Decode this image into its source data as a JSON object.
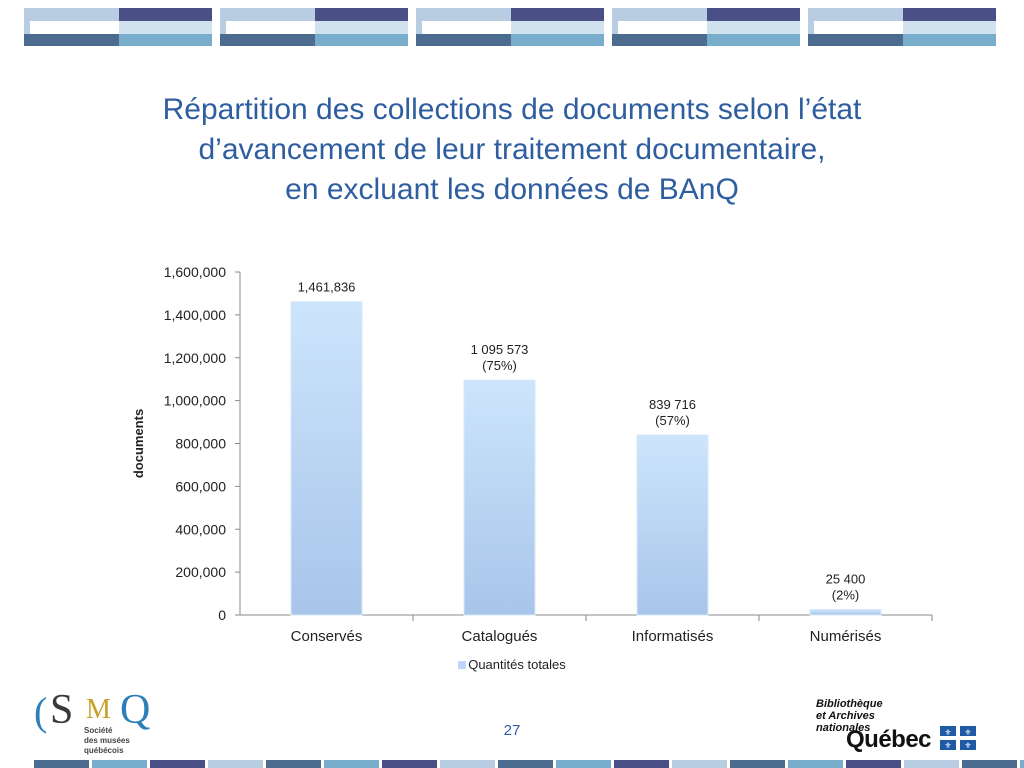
{
  "title_lines": [
    "Répartition des collections de documents selon l’état",
    "d’avancement de leur traitement documentaire,",
    "en excluant les données de BAnQ"
  ],
  "page_number": "27",
  "logos": {
    "smq": {
      "letters": [
        "(",
        "S",
        "M",
        "Q"
      ],
      "sub": [
        "Société",
        "des musées",
        "québécois"
      ]
    },
    "banq": {
      "lines": [
        "Bibliothèque",
        "et Archives",
        "nationales"
      ],
      "quebec": "Québec"
    }
  },
  "colors": {
    "title": "#2f5ea0",
    "bar_top": "#c9e2fb",
    "bar_bottom": "#a9c6ea",
    "axis": "#888888"
  },
  "chart_data": {
    "type": "bar",
    "title": "",
    "xlabel": "",
    "ylabel": "documents",
    "categories": [
      "Conservés",
      "Catalogués",
      "Informatisés",
      "Numérisés"
    ],
    "series": [
      {
        "name": "Quantités totales",
        "values": [
          1461836,
          1095573,
          839716,
          25400
        ]
      }
    ],
    "data_labels": [
      [
        "1,461,836"
      ],
      [
        "1 095 573",
        "(75%)"
      ],
      [
        "839 716",
        "(57%)"
      ],
      [
        "25 400",
        "(2%)"
      ]
    ],
    "ylim": [
      0,
      1600000
    ],
    "yticks": [
      0,
      200000,
      400000,
      600000,
      800000,
      1000000,
      1200000,
      1400000,
      1600000
    ],
    "ytick_labels": [
      "0",
      "200,000",
      "400,000",
      "600,000",
      "800,000",
      "1,000,000",
      "1,200,000",
      "1,400,000",
      "1,600,000"
    ],
    "grid": false,
    "legend": "bottom"
  }
}
